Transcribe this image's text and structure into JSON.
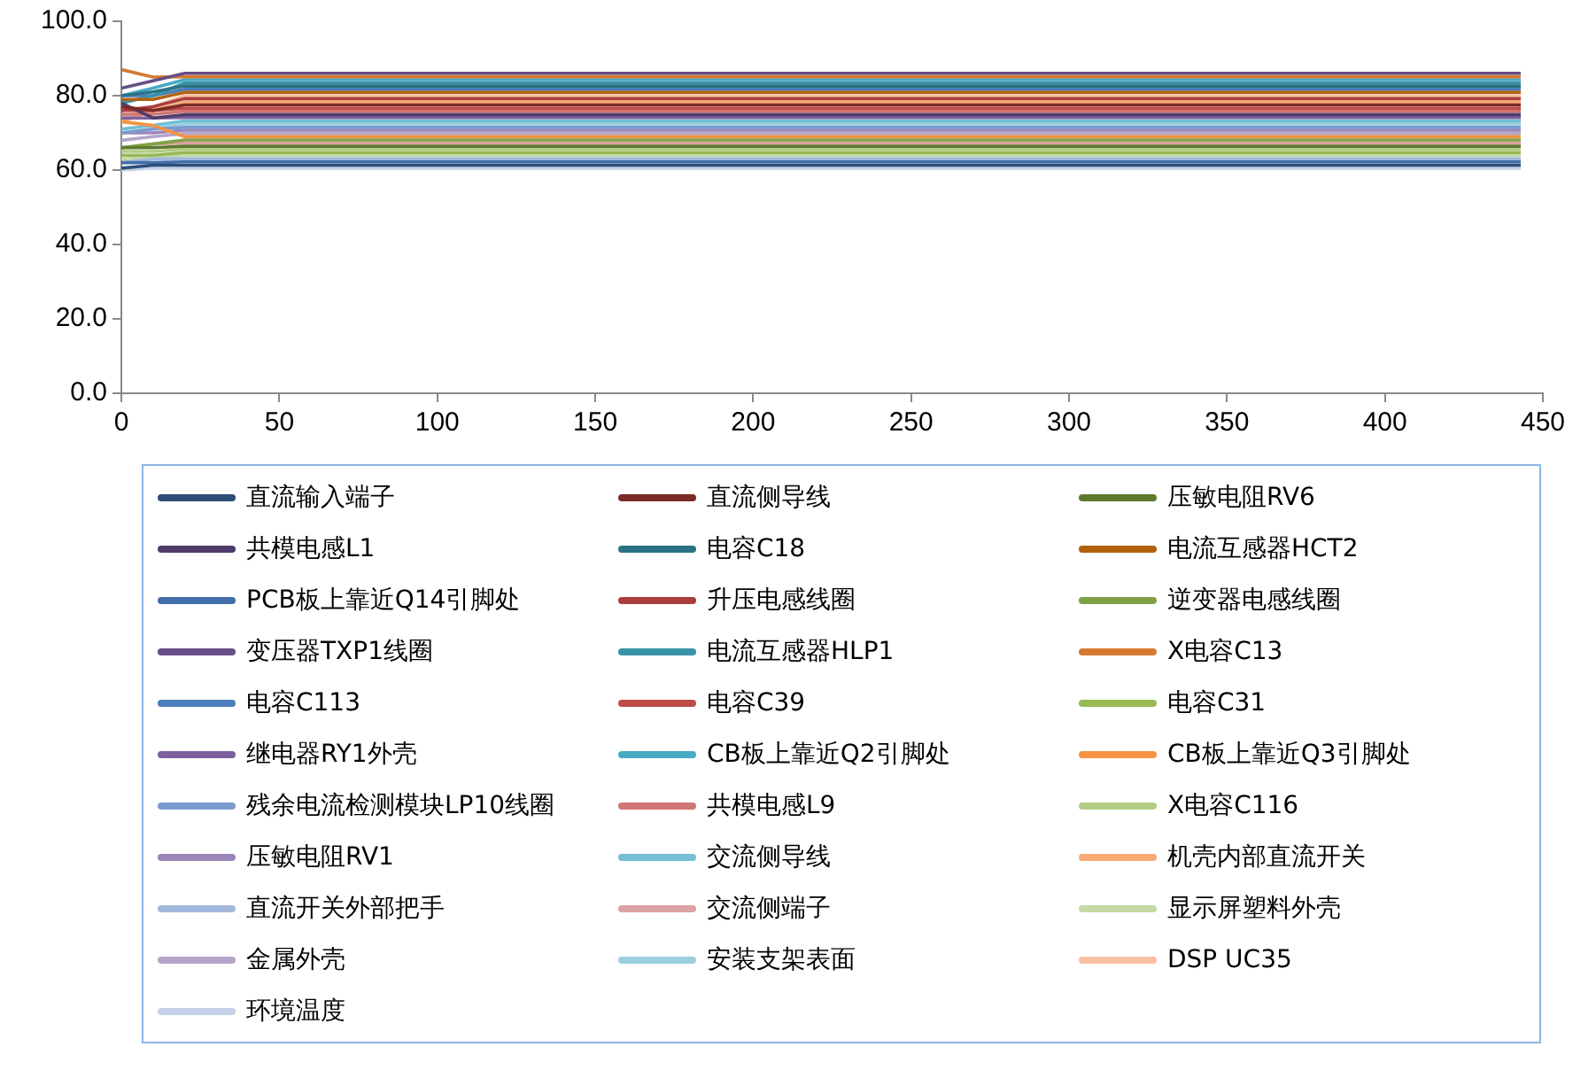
{
  "chart_data": {
    "type": "line",
    "x": [
      0,
      10,
      20,
      30,
      443
    ],
    "xlim": [
      0,
      450
    ],
    "xticks": [
      0,
      50,
      100,
      150,
      200,
      250,
      300,
      350,
      400,
      450
    ],
    "ylim": [
      0,
      100
    ],
    "yticks": [
      {
        "value": 0,
        "label": "0.0"
      },
      {
        "value": 20,
        "label": "20.0"
      },
      {
        "value": 40,
        "label": "40.0"
      },
      {
        "value": 60,
        "label": "60.0"
      },
      {
        "value": 80,
        "label": "80.0"
      },
      {
        "value": 100,
        "label": "100.0"
      }
    ],
    "grid": false,
    "legend": "bottom",
    "marker": "none",
    "line_style": "solid",
    "series": [
      {
        "name": "直流输入端子",
        "color": "#2e4e78",
        "values": [
          60.5,
          61.3,
          61.3,
          61.3,
          61.3
        ]
      },
      {
        "name": "直流侧导线",
        "color": "#7a2b29",
        "values": [
          77,
          76,
          77.5,
          77.5,
          77.5
        ]
      },
      {
        "name": "压敏电阻RV6",
        "color": "#5e7a2e",
        "values": [
          66,
          66,
          66.4,
          66.4,
          66.4
        ]
      },
      {
        "name": "共模电感L1",
        "color": "#4f3c6a",
        "values": [
          78,
          74,
          74.9,
          74.9,
          74.9
        ]
      },
      {
        "name": "电容C18",
        "color": "#2a7383",
        "values": [
          80,
          81,
          82.6,
          82.6,
          82.6
        ]
      },
      {
        "name": "电流互感器HCT2",
        "color": "#b1620f",
        "values": [
          79,
          79,
          80.9,
          80.9,
          80.9
        ]
      },
      {
        "name": "PCB板上靠近Q14引脚处",
        "color": "#426ea9",
        "values": [
          62,
          62,
          62.2,
          62.2,
          62.2
        ]
      },
      {
        "name": "升压电感线圈",
        "color": "#aa3e3b",
        "values": [
          76,
          77,
          79.2,
          79.2,
          79.2
        ]
      },
      {
        "name": "逆变器电感线圈",
        "color": "#80a046",
        "values": [
          66,
          67,
          68.1,
          68.1,
          68.1
        ]
      },
      {
        "name": "变压器TXP1线圈",
        "color": "#664e86",
        "values": [
          82,
          84,
          86,
          86,
          86
        ]
      },
      {
        "name": "电流互感器HLP1",
        "color": "#3b93aa",
        "values": [
          78,
          80,
          83.4,
          83.4,
          83.4
        ]
      },
      {
        "name": "X电容C13",
        "color": "#d67a31",
        "values": [
          87,
          85,
          85.1,
          85.1,
          85.1
        ]
      },
      {
        "name": "电容C113",
        "color": "#4a7ebb",
        "values": [
          80,
          80,
          81.7,
          81.7,
          81.7
        ]
      },
      {
        "name": "电容C39",
        "color": "#be4b48",
        "values": [
          76,
          76,
          76.6,
          76.6,
          76.6
        ]
      },
      {
        "name": "电容C31",
        "color": "#98b954",
        "values": [
          64,
          64,
          64.7,
          64.7,
          64.7
        ]
      },
      {
        "name": "继电器RY1外壳",
        "color": "#7d60a0",
        "values": [
          74,
          74,
          74.1,
          74.1,
          74.1
        ]
      },
      {
        "name": "CB板上靠近Q2引脚处",
        "color": "#46aac5",
        "values": [
          80,
          82,
          84.3,
          84.3,
          84.3
        ]
      },
      {
        "name": "CB板上靠近Q3引脚处",
        "color": "#f69240",
        "values": [
          73,
          72,
          69,
          69,
          69
        ]
      },
      {
        "name": "残余电流检测模块LP10线圈",
        "color": "#7b9ad0",
        "values": [
          70,
          71,
          71.5,
          71.5,
          71.5
        ]
      },
      {
        "name": "共模电感L9",
        "color": "#d07674",
        "values": [
          75,
          75,
          75.8,
          75.8,
          75.8
        ]
      },
      {
        "name": "X电容C116",
        "color": "#b3cd86",
        "values": [
          65,
          65,
          65.6,
          65.6,
          65.6
        ]
      },
      {
        "name": "压敏电阻RV1",
        "color": "#9a85b8",
        "values": [
          70,
          70,
          70.7,
          70.7,
          70.7
        ]
      },
      {
        "name": "交流侧导线",
        "color": "#72bfd6",
        "values": [
          71,
          72,
          73.2,
          73.2,
          73.2
        ]
      },
      {
        "name": "机壳内部直流开关",
        "color": "#f8aa73",
        "values": [
          73,
          76,
          78.3,
          78.3,
          78.3
        ]
      },
      {
        "name": "直流开关外部把手",
        "color": "#a4b9dd",
        "values": [
          62,
          63,
          63,
          63,
          63
        ]
      },
      {
        "name": "交流侧端子",
        "color": "#dba2a1",
        "values": [
          66,
          67,
          67.3,
          67.3,
          67.3
        ]
      },
      {
        "name": "显示屏塑料外壳",
        "color": "#c4d9a6",
        "values": [
          63,
          63.5,
          63.9,
          63.9,
          63.9
        ]
      },
      {
        "name": "金属外壳",
        "color": "#b3a6c8",
        "values": [
          68,
          69,
          69.8,
          69.8,
          69.8
        ]
      },
      {
        "name": "安装支架表面",
        "color": "#9ccfdf",
        "values": [
          70,
          71,
          72.4,
          72.4,
          72.4
        ]
      },
      {
        "name": "DSP UC35",
        "color": "#f9c0a0",
        "values": [
          74,
          77,
          80,
          80,
          80
        ]
      },
      {
        "name": "环境温度",
        "color": "#c5d2e8",
        "values": [
          60,
          60.5,
          60.5,
          60.5,
          60.5
        ]
      }
    ]
  }
}
